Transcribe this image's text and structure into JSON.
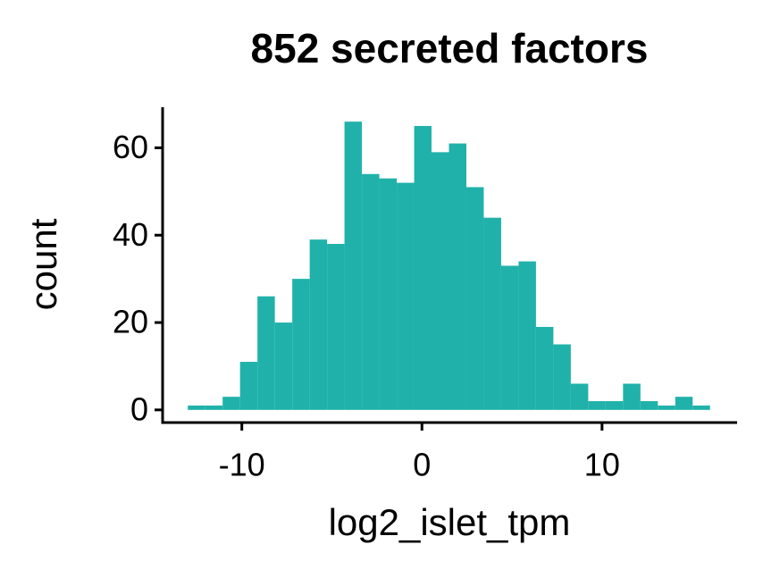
{
  "chart_data": {
    "type": "histogram",
    "title": "852 secreted factors",
    "x_label": "log2_islet_tpm",
    "y_label": "count",
    "color": "#20b2aa",
    "bins": [
      -13,
      -12.033,
      -11.067,
      -10.1,
      -9.133,
      -8.167,
      -7.2,
      -6.233,
      -5.267,
      -4.3,
      -3.333,
      -2.367,
      -1.4,
      -0.433,
      0.533,
      1.5,
      2.467,
      3.433,
      4.4,
      5.367,
      6.333,
      7.3,
      8.267,
      9.233,
      10.2,
      11.167,
      12.133,
      13.1,
      14.067,
      15.033,
      16
    ],
    "values": [
      1,
      1,
      3,
      11,
      26,
      20,
      30,
      39,
      38,
      66,
      54,
      53,
      52,
      65,
      59,
      61,
      51,
      44,
      33,
      34,
      19,
      15,
      6,
      2,
      2,
      6,
      2,
      1,
      3,
      1
    ],
    "xlim": [
      -14.4,
      17.5
    ],
    "ylim": [
      -2.9,
      69.3
    ],
    "xticks": [
      -10,
      0,
      10
    ],
    "yticks": [
      0,
      20,
      40,
      60
    ]
  }
}
